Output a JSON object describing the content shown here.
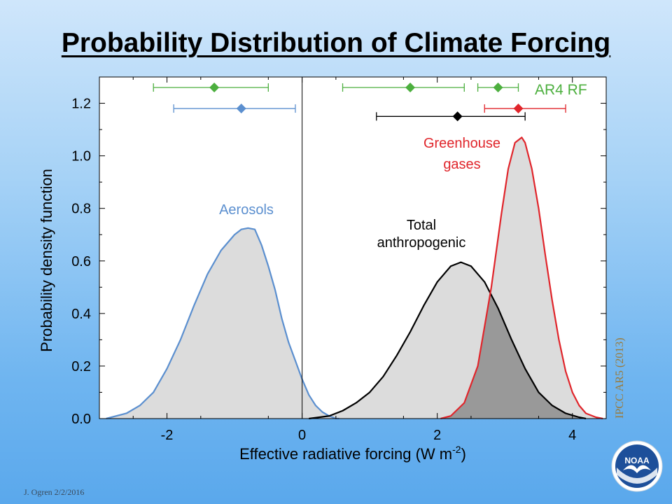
{
  "slide": {
    "title": "Probability Distribution of Climate Forcing",
    "source_note": "IPCC AR5 (2013)",
    "credit": "J. Ogren 2/2/2016",
    "logo_text": "NOAA"
  },
  "chart_data": {
    "type": "area",
    "xlabel": "Effective radiative forcing (W m",
    "xlabel_sup": "-2",
    "xlabel_end": ")",
    "ylabel": "Probability density function",
    "xlim": [
      -3.0,
      4.5
    ],
    "ylim": [
      0,
      1.3
    ],
    "xticks": [
      -2,
      0,
      2,
      4
    ],
    "xtick_labels": [
      "-2",
      "0",
      "2",
      "4"
    ],
    "yticks": [
      0.0,
      0.2,
      0.4,
      0.6,
      0.8,
      1.0,
      1.2
    ],
    "ytick_labels": [
      "0.0",
      "0.2",
      "0.4",
      "0.6",
      "0.8",
      "1.0",
      "1.2"
    ],
    "colors": {
      "aerosols": "#5b8fcf",
      "total": "#000000",
      "ghg": "#e0252b",
      "ar4": "#4caf3e",
      "fill": "#dcdcdc",
      "overlap": "#999999"
    },
    "series": [
      {
        "key": "aerosols",
        "label": [
          "Aerosols"
        ],
        "x": [
          -2.9,
          -2.6,
          -2.4,
          -2.2,
          -2.0,
          -1.8,
          -1.6,
          -1.4,
          -1.2,
          -1.0,
          -0.9,
          -0.8,
          -0.7,
          -0.6,
          -0.5,
          -0.4,
          -0.3,
          -0.2,
          -0.1,
          0.0,
          0.1,
          0.2,
          0.3,
          0.4,
          0.5,
          0.55
        ],
        "y": [
          0.0,
          0.02,
          0.05,
          0.1,
          0.19,
          0.3,
          0.43,
          0.55,
          0.64,
          0.7,
          0.72,
          0.725,
          0.72,
          0.66,
          0.58,
          0.49,
          0.38,
          0.29,
          0.22,
          0.15,
          0.09,
          0.05,
          0.025,
          0.01,
          0.0,
          0.0
        ]
      },
      {
        "key": "total",
        "label": [
          "Total",
          "anthropogenic"
        ],
        "x": [
          0.1,
          0.4,
          0.6,
          0.8,
          1.0,
          1.2,
          1.4,
          1.6,
          1.8,
          2.0,
          2.2,
          2.35,
          2.5,
          2.7,
          2.9,
          3.1,
          3.3,
          3.5,
          3.7,
          3.9,
          4.1,
          4.2
        ],
        "y": [
          0.0,
          0.01,
          0.03,
          0.06,
          0.1,
          0.16,
          0.24,
          0.33,
          0.43,
          0.52,
          0.58,
          0.595,
          0.58,
          0.52,
          0.42,
          0.3,
          0.19,
          0.1,
          0.05,
          0.02,
          0.005,
          0.0
        ]
      },
      {
        "key": "ghg",
        "label": [
          "Greenhouse",
          "gases"
        ],
        "x": [
          2.05,
          2.2,
          2.4,
          2.6,
          2.8,
          2.95,
          3.05,
          3.15,
          3.25,
          3.3,
          3.4,
          3.5,
          3.6,
          3.7,
          3.8,
          3.9,
          4.0,
          4.1,
          4.2,
          4.35,
          4.45
        ],
        "y": [
          0.0,
          0.01,
          0.06,
          0.2,
          0.5,
          0.78,
          0.95,
          1.05,
          1.07,
          1.05,
          0.95,
          0.8,
          0.62,
          0.45,
          0.3,
          0.18,
          0.1,
          0.05,
          0.02,
          0.005,
          0.0
        ]
      }
    ],
    "estimates": [
      {
        "key": "ar4_aerosols",
        "color_key": "ar4",
        "center": -1.3,
        "low": -2.2,
        "high": -0.5,
        "y": 1.26
      },
      {
        "key": "ar5_aerosols",
        "color_key": "aerosols",
        "center": -0.9,
        "low": -1.9,
        "high": -0.1,
        "y": 1.18
      },
      {
        "key": "ar4_total",
        "color_key": "ar4",
        "center": 1.6,
        "low": 0.6,
        "high": 2.4,
        "y": 1.26
      },
      {
        "key": "ar4_ghg",
        "color_key": "ar4",
        "center": 2.9,
        "low": 2.6,
        "high": 3.2,
        "y": 1.26
      },
      {
        "key": "ar5_total",
        "color_key": "total",
        "center": 2.3,
        "low": 1.1,
        "high": 3.3,
        "y": 1.15
      },
      {
        "key": "ar5_ghg",
        "color_key": "ghg",
        "center": 3.2,
        "low": 2.7,
        "high": 3.9,
        "y": 1.18
      }
    ],
    "legend_label": "AR4 RF"
  }
}
